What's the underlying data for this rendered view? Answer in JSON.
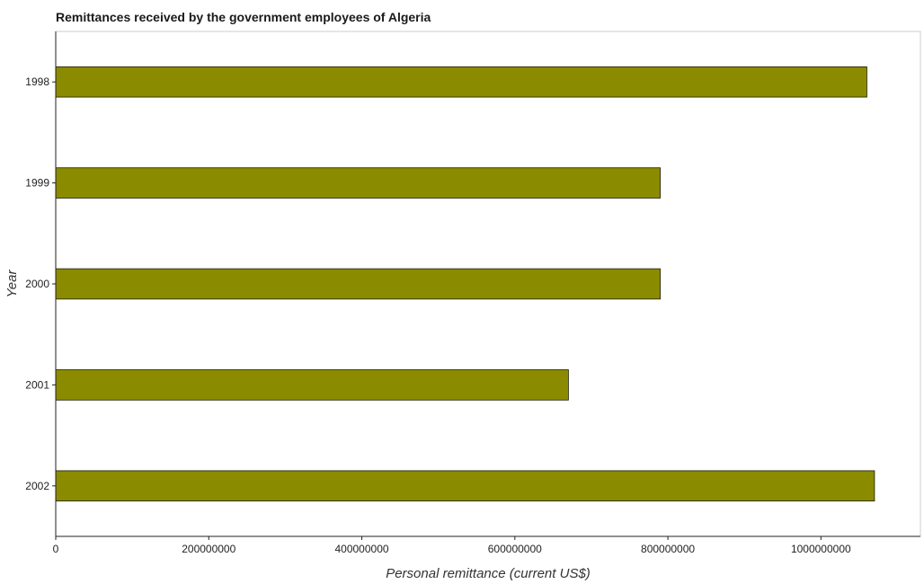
{
  "chart_data": {
    "type": "bar",
    "orientation": "horizontal",
    "title": "Remittances received by the government employees of Algeria",
    "xlabel": "Personal remittance (current US$)",
    "ylabel": "Year",
    "categories": [
      "1998",
      "1999",
      "2000",
      "2001",
      "2002"
    ],
    "values": [
      1060000000,
      790000000,
      790000000,
      670000000,
      1070000000
    ],
    "xlim": [
      0,
      1130000000
    ],
    "xticks": [
      0,
      200000000,
      400000000,
      600000000,
      800000000,
      1000000000
    ],
    "xtick_labels": [
      "0",
      "200000000",
      "400000000",
      "600000000",
      "800000000",
      "1000000000"
    ],
    "bar_color": "#8b8b00",
    "grid": false,
    "legend": "none"
  }
}
